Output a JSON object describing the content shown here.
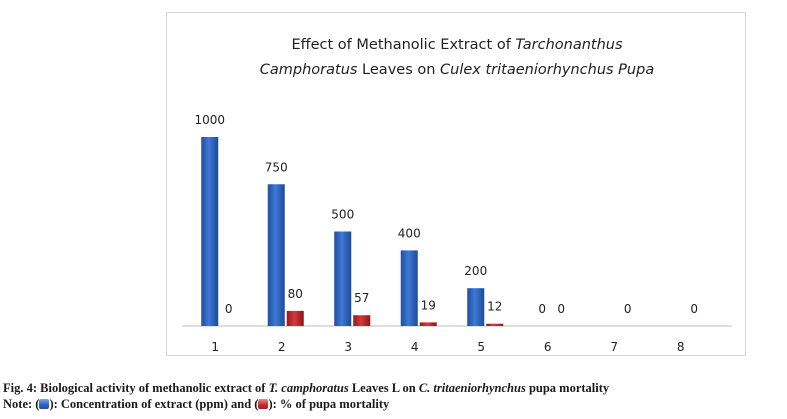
{
  "chart_data": {
    "type": "bar",
    "title_parts": [
      {
        "text": "Effect of Methanolic Extract of ",
        "italic": false
      },
      {
        "text": "Tarchonanthus",
        "italic": true
      },
      {
        "text": "Camphoratus",
        "italic": true
      },
      {
        "text": " Leaves on ",
        "italic": false
      },
      {
        "text": "Culex tritaeniorhynchus Pupa",
        "italic": true
      }
    ],
    "categories": [
      "1",
      "2",
      "3",
      "4",
      "5",
      "6",
      "7",
      "8"
    ],
    "series": [
      {
        "name": "Concentration of extract (ppm)",
        "color": "#2f63c2",
        "values": [
          1000,
          750,
          500,
          400,
          200,
          0,
          null,
          null
        ]
      },
      {
        "name": "% of pupa mortality",
        "color": "#c0282d",
        "values": [
          0,
          80,
          57,
          19,
          12,
          0,
          0,
          0
        ]
      }
    ],
    "xlabel": "",
    "ylabel": "",
    "ylim": [
      0,
      1000
    ],
    "grid": false
  },
  "caption": {
    "fig_prefix": "Fig. 4: Biological activity of methanolic extract of ",
    "species1": "T. camphoratus",
    "middle": " Leaves L on ",
    "species2": "C. tritaeniorhynchus",
    "suffix": " pupa mortality",
    "note_prefix": "Note: (",
    "note_mid": "): Concentration of extract (ppm) and (",
    "note_suffix": "): % of pupa mortality"
  }
}
